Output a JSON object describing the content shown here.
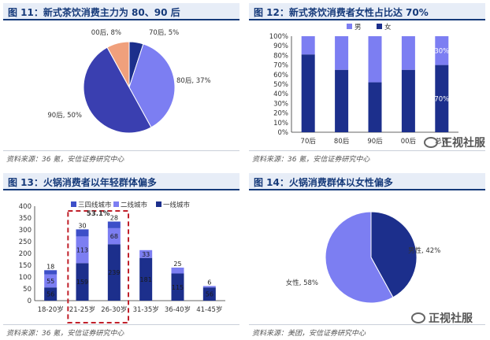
{
  "panels": [
    {
      "title": "图 11：新式茶饮消费主力为 80、90 后",
      "source": "资料来源：36 氪，安信证券研究中心"
    },
    {
      "title": "图 12：新式茶饮消费者女性占比达 70%",
      "source": "资料来源：36 氪，安信证券研究中心"
    },
    {
      "title": "图 13：火锅消费者以年轻群体偏多",
      "source": "资料来源：36 氪，安信证券研究中心"
    },
    {
      "title": "图 14：火锅消费群体以女性偏多",
      "source": "资料来源：美团，安信证券研究中心"
    }
  ],
  "watermarks": [
    "正视社服",
    "正视社服"
  ],
  "colors": {
    "navy": "#1c2f8c",
    "indigo": "#3a3fb0",
    "lilac": "#7c7ef2",
    "salmon": "#f0a07c",
    "mid": "#3d4fc8",
    "title_bg": "#e7edf7",
    "title_text": "#163a7a",
    "highlight": "#c0202a"
  },
  "chart_data": [
    {
      "type": "pie",
      "slices": [
        {
          "label": "70后, 5%",
          "value": 5,
          "color": "#1c2f8c"
        },
        {
          "label": "80后, 37%",
          "value": 37,
          "color": "#7c7ef2"
        },
        {
          "label": "90后, 50%",
          "value": 50,
          "color": "#3a3fb0"
        },
        {
          "label": "00后, 8%",
          "value": 8,
          "color": "#f0a07c"
        }
      ]
    },
    {
      "type": "bar",
      "stacked": true,
      "categories": [
        "70后",
        "80后",
        "90后",
        "00后",
        "总体"
      ],
      "series": [
        {
          "name": "女",
          "values": [
            81,
            65,
            52,
            65,
            70
          ],
          "color": "#1c2f8c"
        },
        {
          "name": "男",
          "values": [
            19,
            35,
            48,
            35,
            30
          ],
          "color": "#7c7ef2"
        }
      ],
      "ylim": [
        0,
        100
      ],
      "yticks": [
        "0%",
        "10%",
        "20%",
        "30%",
        "40%",
        "50%",
        "60%",
        "70%",
        "80%",
        "90%",
        "100%"
      ],
      "data_labels": [
        {
          "category": "总体",
          "series": "男",
          "text": "30%"
        },
        {
          "category": "总体",
          "series": "女",
          "text": "70%"
        }
      ],
      "legend": "top"
    },
    {
      "type": "bar",
      "stacked": true,
      "categories": [
        "18-20岁",
        "21-25岁",
        "26-30岁",
        "31-35岁",
        "36-40岁",
        "41-45岁"
      ],
      "series": [
        {
          "name": "一线城市",
          "values": [
            56,
            159,
            239,
            181,
            115,
            56
          ],
          "color": "#1c2f8c"
        },
        {
          "name": "二线城市",
          "values": [
            55,
            113,
            68,
            33,
            25,
            6
          ],
          "color": "#7c7ef2"
        },
        {
          "name": "三四线城市",
          "values": [
            18,
            30,
            28,
            0,
            0,
            0
          ],
          "color": "#3d4fc8"
        }
      ],
      "ylim": [
        0,
        400
      ],
      "yticks": [
        0,
        50,
        100,
        150,
        200,
        250,
        300,
        350,
        400
      ],
      "legend_order": [
        "三四线城市",
        "二线城市",
        "一线城市"
      ],
      "legend": "top",
      "annotation": "53.1%"
    },
    {
      "type": "pie",
      "slices": [
        {
          "label": "男性, 42%",
          "value": 42,
          "color": "#1c2f8c"
        },
        {
          "label": "女性, 58%",
          "value": 58,
          "color": "#7c7ef2"
        }
      ]
    }
  ]
}
